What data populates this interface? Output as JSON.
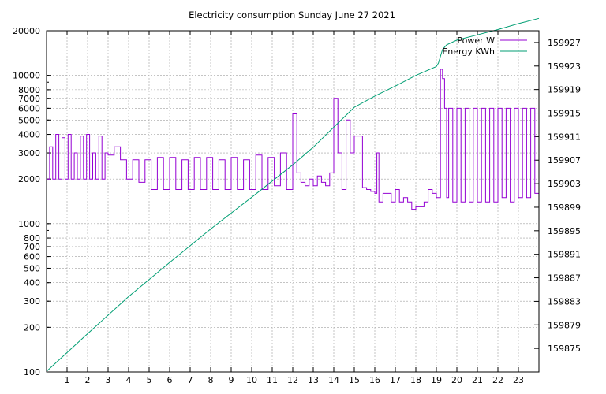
{
  "chart_data": {
    "type": "line",
    "title": "Electricity consumption Sunday June 27 2021",
    "x_ticks": [
      "1",
      "2",
      "3",
      "4",
      "5",
      "6",
      "7",
      "8",
      "9",
      "10",
      "11",
      "12",
      "13",
      "14",
      "15",
      "16",
      "17",
      "18",
      "19",
      "20",
      "21",
      "22",
      "23"
    ],
    "xlim": [
      0,
      24
    ],
    "y_left": {
      "scale": "log",
      "range": [
        100,
        20000
      ],
      "ticks": [
        {
          "value": 100,
          "label": "100"
        },
        {
          "value": 200,
          "label": "200"
        },
        {
          "value": 300,
          "label": "300"
        },
        {
          "value": 400,
          "label": "400"
        },
        {
          "value": 500,
          "label": "500"
        },
        {
          "value": 600,
          "label": "600"
        },
        {
          "value": 700,
          "label": "700"
        },
        {
          "value": 800,
          "label": "800"
        },
        {
          "value": 1000,
          "label": "1000"
        },
        {
          "value": 2000,
          "label": "2000"
        },
        {
          "value": 3000,
          "label": "3000"
        },
        {
          "value": 4000,
          "label": "4000"
        },
        {
          "value": 5000,
          "label": "5000"
        },
        {
          "value": 6000,
          "label": "6000"
        },
        {
          "value": 7000,
          "label": "7000"
        },
        {
          "value": 8000,
          "label": "8000"
        },
        {
          "value": 10000,
          "label": "10000"
        },
        {
          "value": 20000,
          "label": "20000"
        }
      ]
    },
    "y_right": {
      "scale": "linear",
      "range": [
        159871,
        159929
      ],
      "ticks": [
        "159875",
        "159879",
        "159883",
        "159887",
        "159891",
        "159895",
        "159899",
        "159903",
        "159907",
        "159911",
        "159915",
        "159919",
        "159923",
        "159927"
      ]
    },
    "grid": true,
    "legend_position": "top-right",
    "series": [
      {
        "name": "Power W",
        "axis": "left",
        "color": "#9400d3",
        "x": [
          0.0,
          0.15,
          0.3,
          0.45,
          0.6,
          0.75,
          0.9,
          1.05,
          1.2,
          1.35,
          1.5,
          1.65,
          1.8,
          1.95,
          2.1,
          2.25,
          2.4,
          2.55,
          2.7,
          2.85,
          3.0,
          3.3,
          3.6,
          3.9,
          4.2,
          4.5,
          4.8,
          5.1,
          5.4,
          5.7,
          6.0,
          6.3,
          6.6,
          6.9,
          7.2,
          7.5,
          7.8,
          8.1,
          8.4,
          8.7,
          9.0,
          9.3,
          9.6,
          9.9,
          10.2,
          10.5,
          10.8,
          11.1,
          11.4,
          11.7,
          12.0,
          12.2,
          12.4,
          12.6,
          12.8,
          13.0,
          13.2,
          13.4,
          13.6,
          13.8,
          14.0,
          14.2,
          14.4,
          14.6,
          14.8,
          15.0,
          15.2,
          15.4,
          15.6,
          15.8,
          16.0,
          16.1,
          16.2,
          16.4,
          16.6,
          16.8,
          17.0,
          17.2,
          17.4,
          17.6,
          17.8,
          18.0,
          18.2,
          18.4,
          18.6,
          18.8,
          19.0,
          19.2,
          19.3,
          19.4,
          19.5,
          19.6,
          19.8,
          20.0,
          20.2,
          20.4,
          20.6,
          20.8,
          21.0,
          21.2,
          21.4,
          21.6,
          21.8,
          22.0,
          22.2,
          22.4,
          22.6,
          22.8,
          23.0,
          23.2,
          23.4,
          23.6,
          23.8
        ],
        "y": [
          2000,
          3300,
          2000,
          4000,
          2000,
          3800,
          2000,
          4000,
          2000,
          3000,
          2000,
          3900,
          2000,
          4000,
          2000,
          3000,
          2000,
          3900,
          2000,
          3000,
          2900,
          3300,
          2700,
          2000,
          2700,
          1900,
          2700,
          1700,
          2800,
          1700,
          2800,
          1700,
          2700,
          1700,
          2800,
          1700,
          2800,
          1700,
          2700,
          1700,
          2800,
          1700,
          2700,
          1700,
          2900,
          1700,
          2800,
          1800,
          3000,
          1700,
          5500,
          2200,
          1900,
          1800,
          2000,
          1800,
          2100,
          1900,
          1800,
          2200,
          7000,
          3000,
          1700,
          5000,
          3000,
          3900,
          3900,
          1750,
          1700,
          1650,
          1600,
          3000,
          1400,
          1600,
          1600,
          1400,
          1700,
          1400,
          1500,
          1400,
          1250,
          1300,
          1300,
          1400,
          1700,
          1600,
          1500,
          11000,
          9500,
          6000,
          1500,
          6000,
          1400,
          6000,
          1400,
          6000,
          1400,
          6000,
          1400,
          6000,
          1400,
          6000,
          1400,
          6000,
          1500,
          6000,
          1400,
          6000,
          1500,
          6000,
          1500,
          6000,
          1600
        ]
      },
      {
        "name": "Energy KWh",
        "axis": "right",
        "color": "#009e73",
        "x": [
          0,
          2,
          4,
          6,
          8,
          10,
          12,
          13,
          14,
          15,
          16,
          17,
          18,
          19,
          19.1,
          19.3,
          19.5,
          20,
          21,
          22,
          23,
          24
        ],
        "y": [
          159871.1,
          159877.5,
          159883.8,
          159889.6,
          159895.3,
          159900.7,
          159906.2,
          159909.2,
          159912.6,
          159916.0,
          159917.9,
          159919.6,
          159921.4,
          159922.9,
          159923.5,
          159925.8,
          159926.6,
          159927.4,
          159928.3,
          159929.2,
          159930.2,
          159931.1
        ]
      }
    ]
  }
}
